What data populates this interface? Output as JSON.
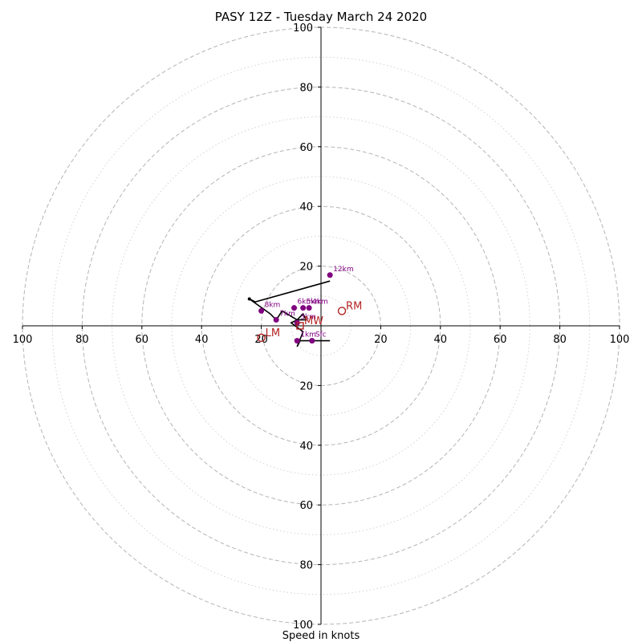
{
  "chart_data": {
    "type": "scatter",
    "subtype": "hodograph",
    "title": "PASY 12Z - Tuesday March 24 2020",
    "xlabel": "Speed in knots",
    "ylabel": "",
    "xlim": [
      -100,
      100
    ],
    "ylim": [
      -100,
      100
    ],
    "major_rings": [
      20,
      40,
      60,
      80,
      100
    ],
    "minor_rings": [
      10,
      30,
      50,
      70,
      90
    ],
    "tick_labels": [
      "100",
      "80",
      "60",
      "40",
      "20",
      "20",
      "40",
      "60",
      "80",
      "100"
    ],
    "y_tick_labels_top": [
      "20",
      "40",
      "60",
      "80",
      "100"
    ],
    "y_tick_labels_bottom": [
      "20",
      "40",
      "60",
      "80",
      "100"
    ],
    "hodograph_line": [
      [
        3,
        -5
      ],
      [
        -1,
        -5
      ],
      [
        -7,
        -5
      ],
      [
        -8,
        -7
      ],
      [
        -6,
        -2
      ],
      [
        -10,
        1
      ],
      [
        -8,
        2
      ],
      [
        -6,
        4
      ],
      [
        -5,
        2
      ],
      [
        -8,
        2
      ],
      [
        -13,
        5
      ],
      [
        -15,
        2
      ],
      [
        -17,
        4
      ],
      [
        -24,
        9
      ],
      [
        -22,
        8
      ],
      [
        3,
        15
      ]
    ],
    "height_points": [
      {
        "label": "Sfc",
        "u": -3,
        "v": -5
      },
      {
        "label": "1km",
        "u": -8,
        "v": -5
      },
      {
        "label": "3km",
        "u": -8,
        "v": 1
      },
      {
        "label": "4km",
        "u": -4,
        "v": 6
      },
      {
        "label": "5km",
        "u": -6,
        "v": 6
      },
      {
        "label": "6km",
        "u": -9,
        "v": 6
      },
      {
        "label": "7km",
        "u": -15,
        "v": 2
      },
      {
        "label": "8km",
        "u": -20,
        "v": 5
      },
      {
        "label": "12km",
        "u": 3,
        "v": 17
      }
    ],
    "storm_motions": [
      {
        "label": "RM",
        "u": 7,
        "v": 5
      },
      {
        "label": "LM",
        "u": -20,
        "v": -4
      },
      {
        "label": "MW",
        "u": -7,
        "v": 0
      }
    ],
    "marker_color": "#800080",
    "motion_color": "#b22222",
    "grid": true,
    "legend": "none"
  }
}
